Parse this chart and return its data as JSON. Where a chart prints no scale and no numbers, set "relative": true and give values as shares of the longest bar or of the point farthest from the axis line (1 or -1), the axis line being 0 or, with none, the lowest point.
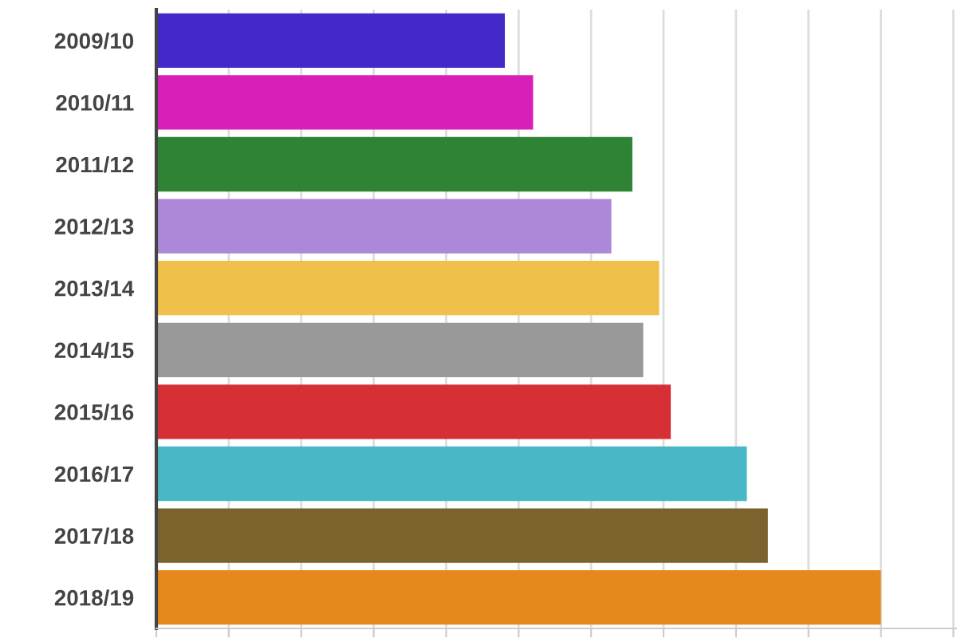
{
  "chart_data": {
    "type": "bar",
    "orientation": "horizontal",
    "relative": true,
    "categories": [
      "2009/10",
      "2010/11",
      "2011/12",
      "2012/13",
      "2013/14",
      "2014/15",
      "2015/16",
      "2016/17",
      "2017/18",
      "2018/19"
    ],
    "values": [
      0.481,
      0.52,
      0.657,
      0.628,
      0.694,
      0.672,
      0.71,
      0.815,
      0.844,
      1.0
    ],
    "colors": [
      "#4428c8",
      "#d81fb8",
      "#2e8434",
      "#ad87d8",
      "#efc04a",
      "#999999",
      "#d63036",
      "#49b8c6",
      "#7a632c",
      "#e5891c"
    ],
    "grid": "x",
    "tick_labels": "y",
    "legend": false
  }
}
